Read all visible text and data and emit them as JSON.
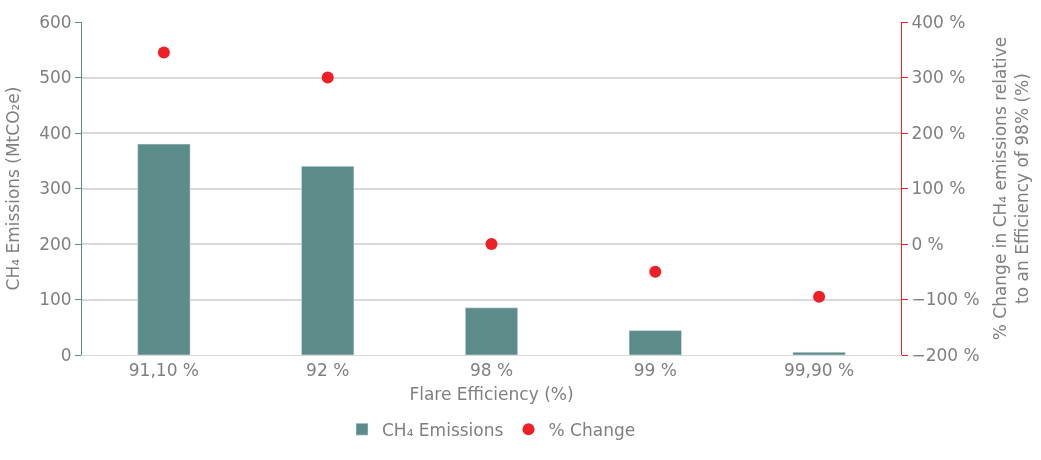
{
  "chart_data": {
    "type": "bar",
    "xlabel": "Flare Efficiency (%)",
    "ylabel": "CH₄ Emissions (MtCO₂e)",
    "y2label": "% Change in CH₄ emissions relative\nto an Efficiency of 98% (%)",
    "categories": [
      "91,10 %",
      "92 %",
      "98 %",
      "99 %",
      "99,90 %"
    ],
    "series": [
      {
        "name": "CH₄ Emissions",
        "color": "#5b8c89",
        "values": [
          380,
          340,
          85,
          44,
          5
        ]
      },
      {
        "name": "% Change",
        "type": "scatter",
        "axis": "y2",
        "color": "#ee2026",
        "marker": "circle",
        "values": [
          345,
          300,
          0,
          -50,
          -95
        ]
      }
    ],
    "ylim": [
      0,
      600
    ],
    "yticks": [
      0,
      100,
      200,
      300,
      400,
      500,
      600
    ],
    "y2lim": [
      -200,
      400
    ],
    "y2ticks": [
      {
        "value": -200,
        "label": "−200 %"
      },
      {
        "value": -100,
        "label": "−100 %"
      },
      {
        "value": 0,
        "label": "0 %"
      },
      {
        "value": 100,
        "label": "100 %"
      },
      {
        "value": 200,
        "label": "200 %"
      },
      {
        "value": 300,
        "label": "300 %"
      },
      {
        "value": 400,
        "label": "400 %"
      }
    ],
    "grid": "y",
    "legend": "bottom"
  }
}
